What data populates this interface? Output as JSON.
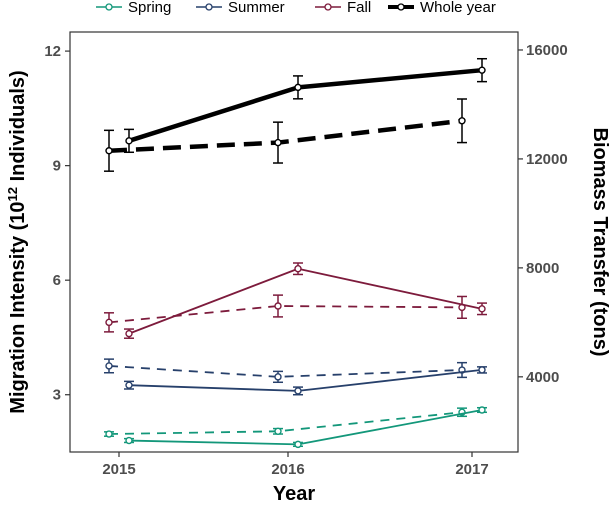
{
  "colors": {
    "spring": "#13977a",
    "summer": "#27406b",
    "fall": "#7d1b3c",
    "whole": "#000000"
  },
  "legend": [
    {
      "name": "Spring",
      "color": "#13977a",
      "lw": 1.6
    },
    {
      "name": "Summer",
      "color": "#27406b",
      "lw": 1.6
    },
    {
      "name": "Fall",
      "color": "#7d1b3c",
      "lw": 1.6
    },
    {
      "name": "Whole year",
      "color": "#000000",
      "lw": 4
    }
  ],
  "axes": {
    "xlabel": "Year",
    "ylabel_left_parts": [
      "Migration Intensity (10",
      "12",
      " Individuals)"
    ],
    "ylabel_right": "Biomass Transfer (tons)",
    "left_ticks": [
      "3",
      "6",
      "9",
      "12"
    ],
    "right_ticks": [
      "4000",
      "8000",
      "12000",
      "16000"
    ],
    "x_ticks": [
      "2015",
      "2016",
      "2017"
    ]
  },
  "chart_data": {
    "type": "line",
    "x": [
      2015,
      2016,
      2017
    ],
    "ylim_left": [
      1.5,
      12.5
    ],
    "ylim_right": [
      1240,
      16660
    ],
    "left_axis": {
      "label": "Migration Intensity (10^12 Individuals)",
      "series": [
        {
          "name": "Spring",
          "line": "solid",
          "values": [
            1.8,
            1.7,
            2.6
          ],
          "errors": [
            0.05,
            0.05,
            0.06
          ]
        },
        {
          "name": "Summer",
          "line": "solid",
          "values": [
            3.25,
            3.1,
            3.65
          ],
          "errors": [
            0.1,
            0.1,
            0.08
          ]
        },
        {
          "name": "Fall",
          "line": "solid",
          "values": [
            4.6,
            6.3,
            5.25
          ],
          "errors": [
            0.12,
            0.15,
            0.15
          ]
        },
        {
          "name": "Whole year",
          "line": "solid",
          "values": [
            9.65,
            11.05,
            11.5
          ],
          "errors": [
            0.3,
            0.3,
            0.3
          ]
        }
      ]
    },
    "right_axis": {
      "label": "Biomass Transfer (tons)",
      "series": [
        {
          "name": "Spring",
          "line": "dashed",
          "values": [
            1900,
            2000,
            2700
          ],
          "errors": [
            80,
            100,
            150
          ]
        },
        {
          "name": "Summer",
          "line": "dashed",
          "values": [
            4400,
            4000,
            4250
          ],
          "errors": [
            250,
            200,
            270
          ]
        },
        {
          "name": "Fall",
          "line": "dashed",
          "values": [
            6000,
            6600,
            6550
          ],
          "errors": [
            350,
            400,
            400
          ]
        },
        {
          "name": "Whole year",
          "line": "dashed",
          "values": [
            12300,
            12600,
            13400
          ],
          "errors": [
            750,
            750,
            800
          ]
        }
      ]
    }
  }
}
